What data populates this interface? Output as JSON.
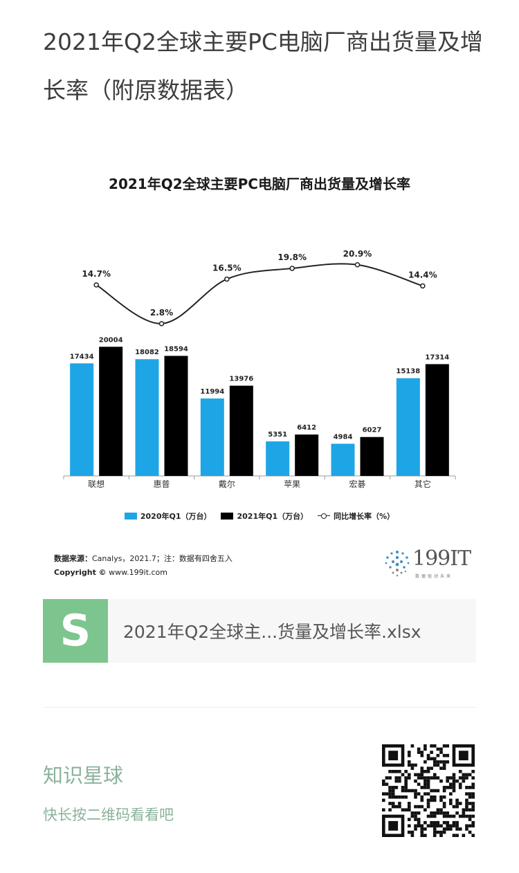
{
  "post": {
    "title": "2021年Q2全球主要PC电脑厂商出货量及增长率（附原数据表）"
  },
  "figure": {
    "legend": {
      "series1": "2020年Q1（万台）",
      "series2": "2021年Q1（万台）",
      "series3": "同比增长率（%）"
    },
    "source_label": "数据来源：",
    "source_text": "Canalys，2021.7；注：数据有四舍五入",
    "copyright_label": "Copyright ©",
    "copyright_text": "www.199it.com",
    "logo_text": "199IT",
    "logo_sub": "数据驱动未来"
  },
  "chart_data": {
    "type": "bar",
    "title": "2021年Q2全球主要PC电脑厂商出货量及增长率",
    "categories": [
      "联想",
      "惠普",
      "戴尔",
      "苹果",
      "宏碁",
      "其它"
    ],
    "series": [
      {
        "name": "2020年Q1（万台）",
        "values": [
          17434,
          18082,
          11994,
          5351,
          4984,
          15138
        ],
        "color": "#1ea5e6"
      },
      {
        "name": "2021年Q1（万台）",
        "values": [
          20004,
          18594,
          13976,
          6412,
          6027,
          17314
        ],
        "color": "#000000"
      },
      {
        "name": "同比增长率（%）",
        "type": "line",
        "values": [
          14.7,
          2.8,
          16.5,
          19.8,
          20.9,
          14.4
        ],
        "labels": [
          "14.7%",
          "2.8%",
          "16.5%",
          "19.8%",
          "20.9%",
          "14.4%"
        ],
        "color": "#222222"
      }
    ],
    "ylim": [
      0,
      30000
    ],
    "line_ylim": [
      -10,
      30
    ],
    "grid": false,
    "legend_position": "bottom"
  },
  "file_card": {
    "icon_letter": "S",
    "filename": "2021年Q2全球主...货量及增长率.xlsx",
    "icon_color": "#7cc58e"
  },
  "planet": {
    "title": "知识星球",
    "subtitle": "快长按二维码看看吧",
    "color": "#8ab29a"
  }
}
